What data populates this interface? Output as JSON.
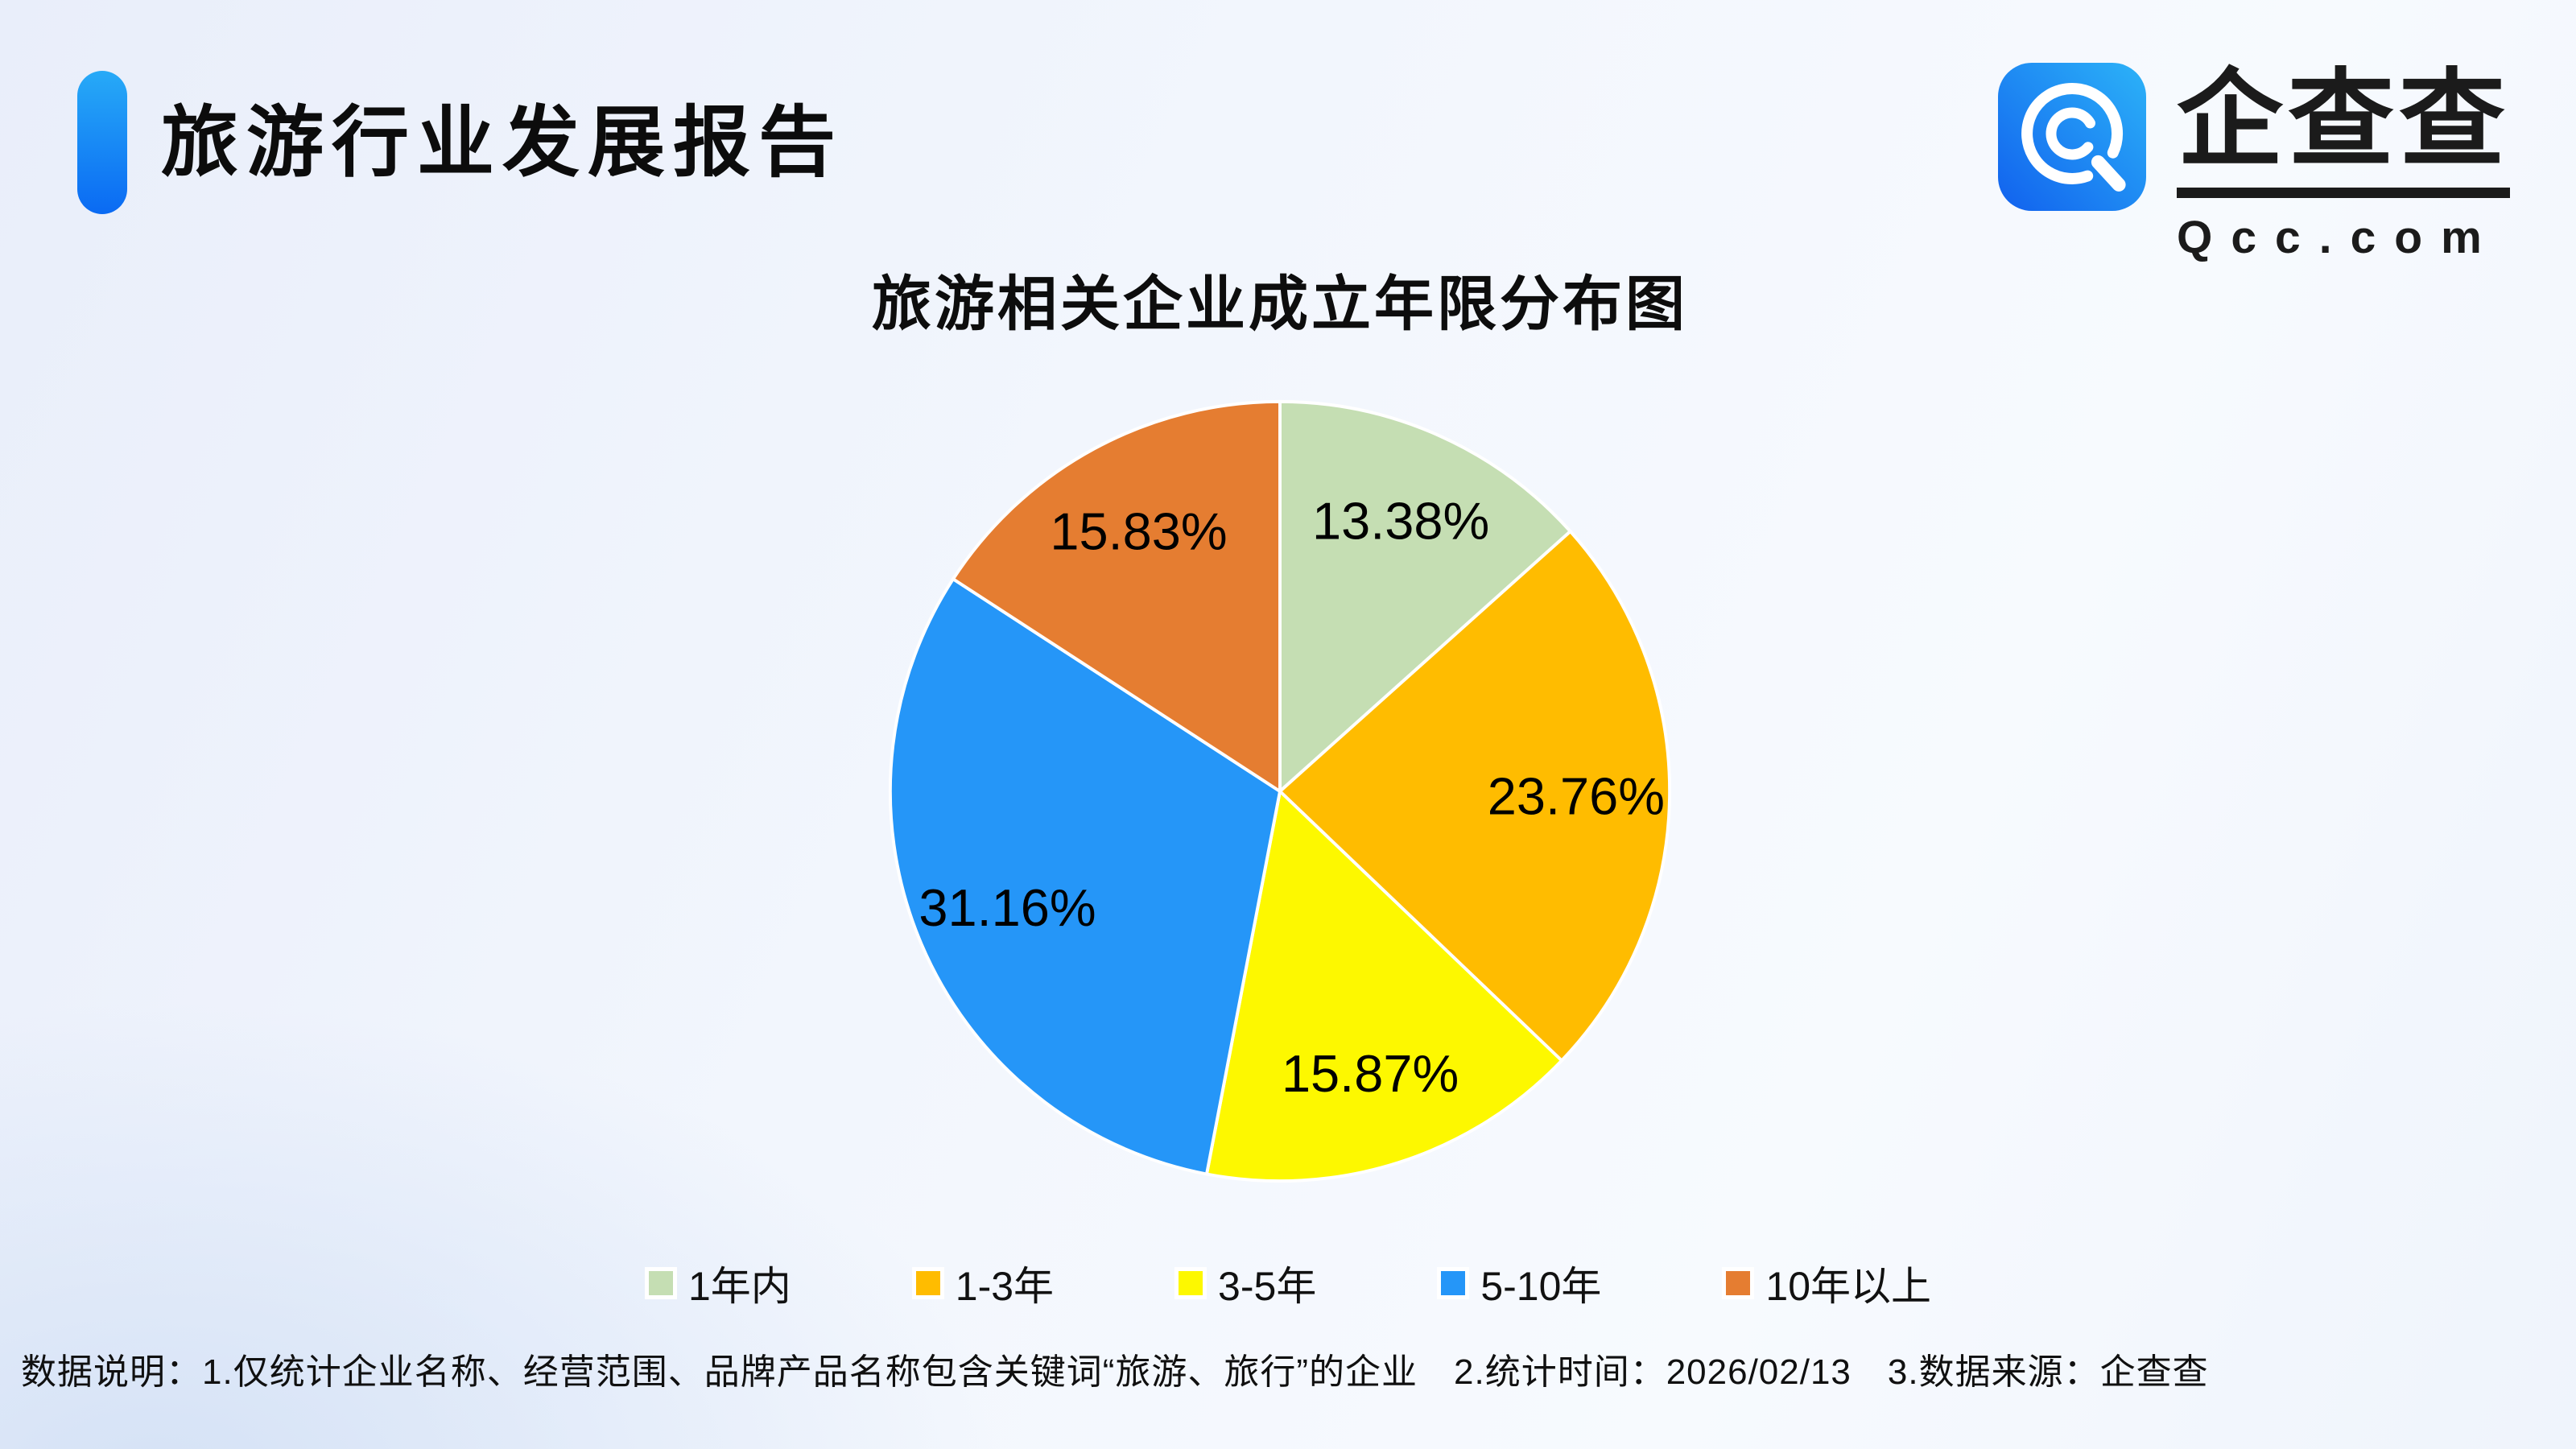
{
  "header": {
    "title": "旅游行业发展报告",
    "accent_bar_color_top": "#27aaf7",
    "accent_bar_color_bottom": "#0a6af3"
  },
  "logo": {
    "brand_name": "企查查",
    "domain": "Qcc.com",
    "icon": "qcc-magnifier-icon",
    "icon_gradient_start": "#1161ee",
    "icon_gradient_end": "#2cb3f8"
  },
  "chart_data": {
    "type": "pie",
    "title": "旅游相关企业成立年限分布图",
    "categories": [
      "1年内",
      "1-3年",
      "3-5年",
      "5-10年",
      "10年以上"
    ],
    "values": [
      13.38,
      23.76,
      15.87,
      31.16,
      15.83
    ],
    "labels": [
      "13.38%",
      "23.76%",
      "15.87%",
      "31.16%",
      "15.83%"
    ],
    "colors": [
      "#c5deb3",
      "#ffbc00",
      "#fdf800",
      "#2596f8",
      "#e57d31"
    ],
    "slice_border_color": "#ffffff",
    "start_angle_deg": 0,
    "direction": "clockwise",
    "legend_position": "bottom",
    "label_color": "#000000"
  },
  "footer": {
    "note": "数据说明：1.仅统计企业名称、经营范围、品牌产品名称包含关键词“旅游、旅行”的企业　2.统计时间：2026/02/13　3.数据来源：企查查"
  }
}
